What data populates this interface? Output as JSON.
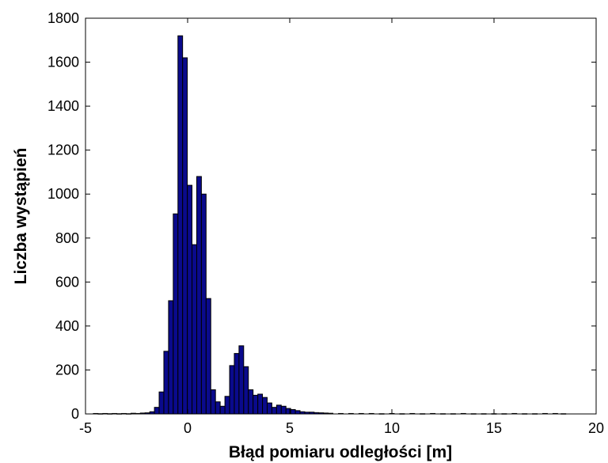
{
  "chart_data": {
    "type": "bar",
    "title": "",
    "xlabel": "Błąd pomiaru odległości [m]",
    "ylabel": "Liczba wystąpień",
    "xlim": [
      -5,
      20
    ],
    "ylim": [
      0,
      1800
    ],
    "xticks": [
      "-5",
      "0",
      "5",
      "10",
      "15",
      "20"
    ],
    "yticks": [
      "0",
      "200",
      "400",
      "600",
      "800",
      "1000",
      "1200",
      "1400",
      "1600",
      "1800"
    ],
    "grid": false,
    "bar_color": "#0a0a8c",
    "bin_width": 0.228,
    "series": [
      {
        "x": [
          -4.5,
          -4.27,
          -4.04,
          -3.81,
          -3.58,
          -3.35,
          -3.12,
          -2.89,
          -2.66,
          -2.43,
          -2.2,
          -1.97,
          -1.74,
          -1.51,
          -1.28,
          -1.05,
          -0.82,
          -0.59,
          -0.36,
          -0.13,
          0.1,
          0.33,
          0.56,
          0.79,
          1.02,
          1.25,
          1.48,
          1.71,
          1.94,
          2.17,
          2.4,
          2.63,
          2.86,
          3.09,
          3.32,
          3.55,
          3.78,
          4.01,
          4.24,
          4.47,
          4.7,
          4.93,
          5.16,
          5.39,
          5.62,
          5.85,
          6.08,
          6.31,
          6.54,
          6.77,
          7.0,
          7.5,
          8.0,
          8.5,
          9.0,
          9.5,
          10.0,
          10.5,
          11.0,
          11.5,
          12.0,
          12.5,
          13.0,
          13.5,
          14.0,
          14.5,
          15.0,
          15.5,
          16.0,
          16.5,
          17.0,
          17.5,
          18.0,
          18.4
        ],
        "values": [
          2,
          1,
          2,
          1,
          2,
          1,
          2,
          1,
          3,
          2,
          4,
          5,
          10,
          30,
          100,
          285,
          515,
          910,
          1720,
          1620,
          1040,
          770,
          1080,
          1000,
          525,
          110,
          55,
          35,
          80,
          220,
          275,
          310,
          215,
          110,
          85,
          90,
          75,
          50,
          30,
          40,
          35,
          25,
          20,
          15,
          10,
          8,
          8,
          6,
          5,
          4,
          3,
          2,
          2,
          2,
          2,
          1,
          2,
          1,
          2,
          1,
          2,
          1,
          1,
          2,
          1,
          1,
          1,
          1,
          2,
          1,
          1,
          2,
          2,
          1
        ]
      }
    ]
  }
}
